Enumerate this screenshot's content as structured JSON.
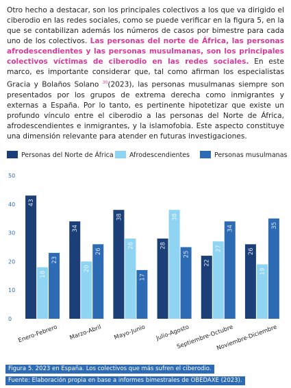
{
  "paragraph": {
    "intro": "Otro hecho a destacar, son los principales colectivos a los que va dirigido el ciberodio en las redes sociales, como se puede verificar en la figura 5, en la que se contabilizan además los números de casos por bimestre para cada uno de los colectivos.",
    "highlight": "Las personas del norte de África, las personas afrodescendientes y las personas musulmanas, son los principales colectivos víctimas de ciberodio en las redes sociales.",
    "middle": "En este marco, es importante considerar que, tal como afirman los especialistas Gracia y Bolaños Solano",
    "footnote": "30",
    "end": "(2023), las personas musulmanas siempre son presentados por los grupos de extrema derecha como inmigrantes y externas a España. Por lo tanto, es pertinente hipotetizar que existe un profundo vínculo entre el ciberodio a las personas del Norte de África, afrodescendientes e inmigrantes, y la islamofobia. Este aspecto constituye una dimensión relevante para atender en futuras investigaciones."
  },
  "chart_data": {
    "type": "bar",
    "categories": [
      "Enero-Febrero",
      "Marzo-Abril",
      "Mayo-Junio",
      "Julio-Agosto",
      "Septiembre-Octubre",
      "Noviembre-Diciembre"
    ],
    "series": [
      {
        "name": "Personas del Norte de África",
        "color": "#1d3f78",
        "values": [
          43,
          34,
          38,
          28,
          22,
          26
        ]
      },
      {
        "name": "Afrodescendientes",
        "color": "#8fd4f2",
        "values": [
          18,
          20,
          28,
          38,
          27,
          19
        ]
      },
      {
        "name": "Personas musulmanas",
        "color": "#2e6bb5",
        "values": [
          23,
          26,
          17,
          25,
          34,
          35
        ]
      }
    ],
    "ylim": [
      0,
      50
    ],
    "yticks": [
      0,
      10,
      20,
      30,
      40,
      50
    ],
    "legend": "top"
  },
  "captions": [
    "Figura 5. 2023 en España. Los colectivos que más sufren el ciberodio.",
    "Fuente: Elaboración propia en base a informes bimestrales de OBEDAXE (2023)."
  ]
}
